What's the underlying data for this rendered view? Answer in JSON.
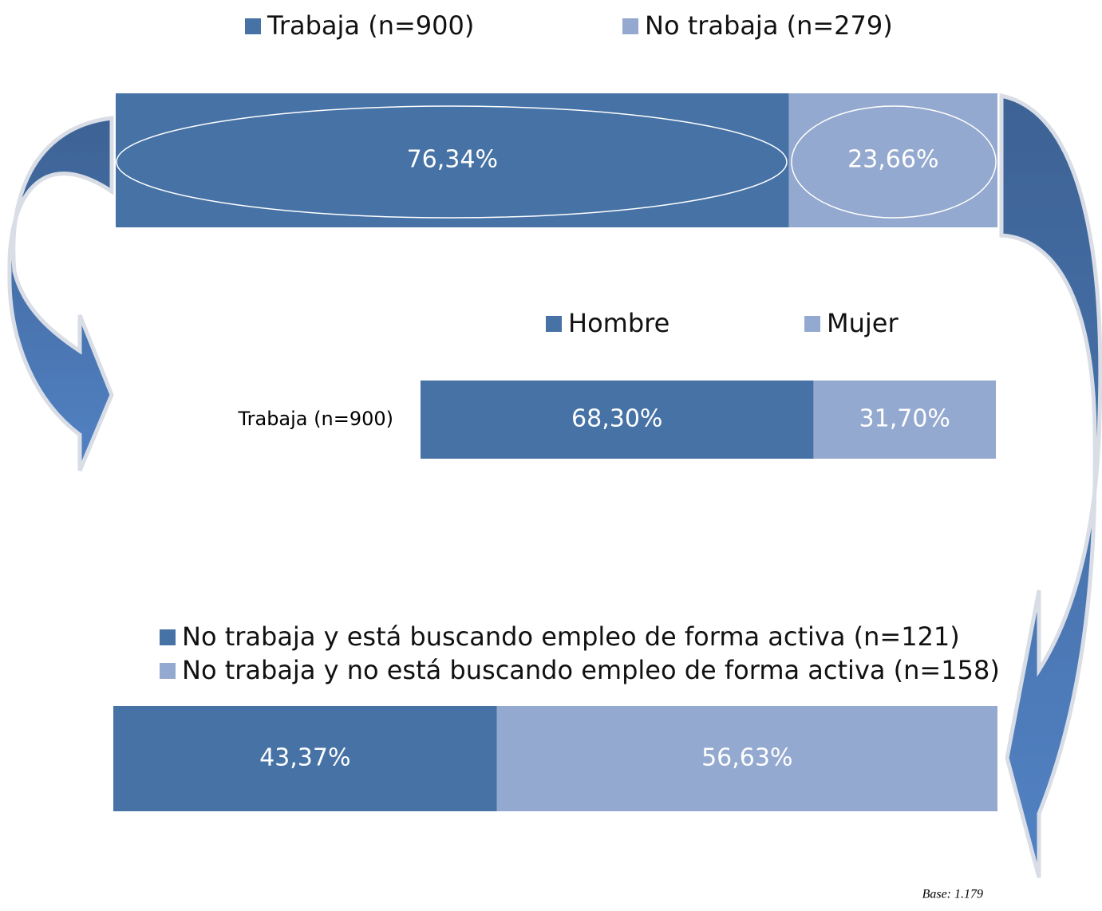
{
  "chart_data": [
    {
      "type": "bar",
      "stacked": true,
      "horizontal": true,
      "categories": [
        null
      ],
      "xlim": [
        0,
        100
      ],
      "series": [
        {
          "name": "Trabaja (n=900)",
          "color": "#4672a6",
          "values": [
            76.34
          ],
          "value_labels": [
            "76,34%"
          ]
        },
        {
          "name": "No trabaja (n=279)",
          "color": "#94a9cf",
          "values": [
            23.66
          ],
          "value_labels": [
            "23,66%"
          ]
        }
      ]
    },
    {
      "type": "bar",
      "stacked": true,
      "horizontal": true,
      "categories": [
        "Trabaja (n=900)"
      ],
      "xlim": [
        0,
        100
      ],
      "series": [
        {
          "name": "Hombre",
          "color": "#4672a6",
          "values": [
            68.3
          ],
          "value_labels": [
            "68,30%"
          ]
        },
        {
          "name": "Mujer",
          "color": "#94a9cf",
          "values": [
            31.7
          ],
          "value_labels": [
            "31,70%"
          ]
        }
      ]
    },
    {
      "type": "bar",
      "stacked": true,
      "horizontal": true,
      "categories": [
        null
      ],
      "xlim": [
        0,
        100
      ],
      "series": [
        {
          "name": "No trabaja y está buscando empleo de forma activa (n=121)",
          "color": "#4672a6",
          "values": [
            43.37
          ],
          "value_labels": [
            "43,37%"
          ]
        },
        {
          "name": "No trabaja y no está buscando empleo de forma activa (n=158)",
          "color": "#94a9cf",
          "values": [
            56.63
          ],
          "value_labels": [
            "56,63%"
          ]
        }
      ]
    }
  ],
  "footnote": "Base: 1.179"
}
